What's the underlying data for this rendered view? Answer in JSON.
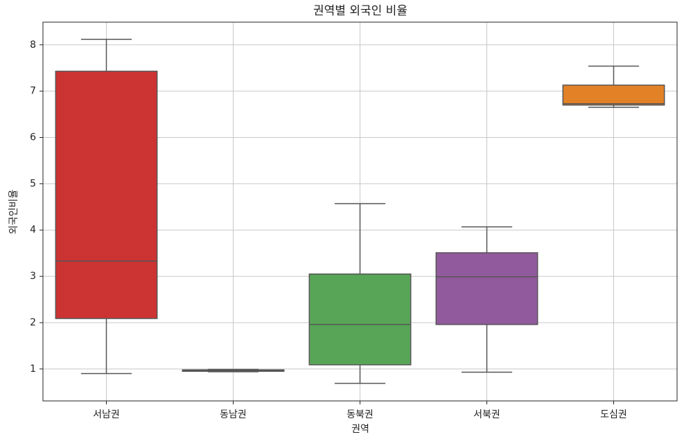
{
  "chart_data": {
    "type": "box",
    "title": "권역별 외국인 비율",
    "xlabel": "권역",
    "ylabel": "외국인비율",
    "categories": [
      "서남권",
      "동남권",
      "동북권",
      "서북권",
      "도심권"
    ],
    "boxes": [
      {
        "min": 0.9,
        "q1": 2.09,
        "median": 3.33,
        "q3": 7.43,
        "max": 8.12,
        "color": "#cc3333"
      },
      {
        "min": 0.94,
        "q1": 0.95,
        "median": 0.96,
        "q3": 0.98,
        "max": 0.99,
        "color": "#3f7cb6"
      },
      {
        "min": 0.69,
        "q1": 1.09,
        "median": 1.96,
        "q3": 3.05,
        "max": 4.57,
        "color": "#59a557"
      },
      {
        "min": 0.93,
        "q1": 1.96,
        "median": 2.99,
        "q3": 3.51,
        "max": 4.07,
        "color": "#915a9c"
      },
      {
        "min": 6.65,
        "q1": 6.7,
        "median": 6.73,
        "q3": 7.13,
        "max": 7.54,
        "color": "#e28126"
      }
    ],
    "ylim": [
      0.31,
      8.49
    ],
    "yticks": [
      1,
      2,
      3,
      4,
      5,
      6,
      7,
      8
    ],
    "grid": true
  }
}
